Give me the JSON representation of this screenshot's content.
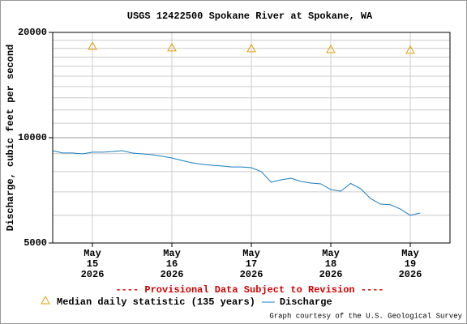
{
  "chart_data": {
    "type": "line",
    "title": "USGS 12422500 Spokane River at Spokane, WA",
    "y_label": "Discharge, cubic feet per second",
    "notice": "---- Provisional Data Subject to Revision ----",
    "credit": "Graph courtesy of the U.S. Geological Survey",
    "log_y": true,
    "grid": true,
    "ylim": [
      5000,
      20000
    ],
    "yticks": [
      5000,
      10000,
      20000
    ],
    "minor_yticks": [
      6000,
      7000,
      8000,
      9000,
      11000,
      12000,
      13000,
      14000,
      15000,
      16000,
      17000,
      18000,
      19000
    ],
    "xlim": [
      "2026-05-14T12:00",
      "2026-05-19T12:00"
    ],
    "xticks": [
      {
        "value": "2026-05-15",
        "label": [
          "May",
          "15",
          "2026"
        ]
      },
      {
        "value": "2026-05-16",
        "label": [
          "May",
          "16",
          "2026"
        ]
      },
      {
        "value": "2026-05-17",
        "label": [
          "May",
          "17",
          "2026"
        ]
      },
      {
        "value": "2026-05-18",
        "label": [
          "May",
          "18",
          "2026"
        ]
      },
      {
        "value": "2026-05-19",
        "label": [
          "May",
          "19",
          "2026"
        ]
      }
    ],
    "series": [
      {
        "name": "Median daily statistic (135 years)",
        "type": "scatter",
        "color": "#e6a100",
        "x": [
          "2026-05-15",
          "2026-05-16",
          "2026-05-17",
          "2026-05-18",
          "2026-05-19"
        ],
        "values": [
          18270,
          18090,
          17990,
          17880,
          17800
        ]
      },
      {
        "name": "Discharge",
        "type": "line",
        "color": "#1a7dbf",
        "x": [
          "2026-05-14T12:00",
          "2026-05-14T15:00",
          "2026-05-14T18:00",
          "2026-05-14T21:00",
          "2026-05-15T00:00",
          "2026-05-15T03:00",
          "2026-05-15T06:00",
          "2026-05-15T09:00",
          "2026-05-15T12:00",
          "2026-05-15T15:00",
          "2026-05-15T18:00",
          "2026-05-15T21:00",
          "2026-05-16T00:00",
          "2026-05-16T03:00",
          "2026-05-16T06:00",
          "2026-05-16T09:00",
          "2026-05-16T12:00",
          "2026-05-16T15:00",
          "2026-05-16T18:00",
          "2026-05-16T21:00",
          "2026-05-17T00:00",
          "2026-05-17T03:00",
          "2026-05-17T06:00",
          "2026-05-17T09:00",
          "2026-05-17T12:00",
          "2026-05-17T15:00",
          "2026-05-17T18:00",
          "2026-05-17T21:00",
          "2026-05-18T00:00",
          "2026-05-18T03:00",
          "2026-05-18T06:00",
          "2026-05-18T09:00",
          "2026-05-18T12:00",
          "2026-05-18T15:00",
          "2026-05-18T18:00",
          "2026-05-18T21:00",
          "2026-05-19T00:00",
          "2026-05-19T03:00"
        ],
        "values": [
          9180,
          9040,
          9040,
          8990,
          9090,
          9090,
          9130,
          9180,
          9040,
          8990,
          8940,
          8850,
          8750,
          8610,
          8480,
          8390,
          8340,
          8300,
          8250,
          8250,
          8210,
          8000,
          7460,
          7580,
          7660,
          7500,
          7420,
          7380,
          7110,
          7030,
          7400,
          7150,
          6700,
          6460,
          6430,
          6250,
          6000,
          6090
        ]
      }
    ]
  }
}
